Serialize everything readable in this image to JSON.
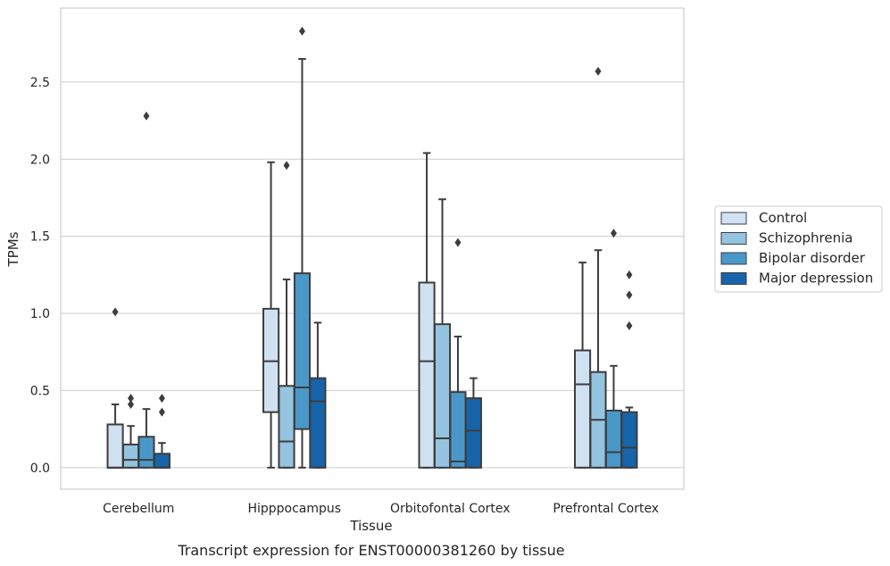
{
  "caption": "Transcript expression for ENST00000381260 by tissue",
  "chart_data": {
    "type": "box",
    "xlabel": "Tissue",
    "ylabel": "TPMs",
    "ylim": [
      -0.14,
      2.98
    ],
    "yticks": [
      0.0,
      0.5,
      1.0,
      1.5,
      2.0,
      2.5
    ],
    "ytick_labels": [
      "0.0",
      "0.5",
      "1.0",
      "1.5",
      "2.0",
      "2.5"
    ],
    "categories": [
      "Cerebellum",
      "Hipppocampus",
      "Orbitofontal Cortex",
      "Prefrontal Cortex"
    ],
    "grid": "horizontal",
    "legend_position": "right",
    "series": [
      {
        "name": "Control",
        "color": "#d0e1f2",
        "boxes": [
          {
            "whislo": 0.0,
            "q1": 0.0,
            "med": 0.0,
            "q3": 0.28,
            "whishi": 0.41,
            "fliers": [
              1.01
            ]
          },
          {
            "whislo": 0.0,
            "q1": 0.36,
            "med": 0.69,
            "q3": 1.03,
            "whishi": 1.98,
            "fliers": []
          },
          {
            "whislo": 0.0,
            "q1": 0.0,
            "med": 0.69,
            "q3": 1.2,
            "whishi": 2.04,
            "fliers": []
          },
          {
            "whislo": 0.0,
            "q1": 0.0,
            "med": 0.54,
            "q3": 0.76,
            "whishi": 1.33,
            "fliers": []
          }
        ]
      },
      {
        "name": "Schizophrenia",
        "color": "#94c4df",
        "boxes": [
          {
            "whislo": 0.0,
            "q1": 0.0,
            "med": 0.05,
            "q3": 0.15,
            "whishi": 0.27,
            "fliers": [
              0.45,
              0.41
            ]
          },
          {
            "whislo": 0.0,
            "q1": 0.0,
            "med": 0.17,
            "q3": 0.53,
            "whishi": 1.22,
            "fliers": [
              1.96
            ]
          },
          {
            "whislo": 0.0,
            "q1": 0.0,
            "med": 0.19,
            "q3": 0.93,
            "whishi": 1.74,
            "fliers": []
          },
          {
            "whislo": 0.0,
            "q1": 0.0,
            "med": 0.31,
            "q3": 0.62,
            "whishi": 1.41,
            "fliers": [
              2.57
            ]
          }
        ]
      },
      {
        "name": "Bipolar disorder",
        "color": "#4a98c9",
        "boxes": [
          {
            "whislo": 0.0,
            "q1": 0.0,
            "med": 0.05,
            "q3": 0.2,
            "whishi": 0.38,
            "fliers": [
              2.28
            ]
          },
          {
            "whislo": 0.0,
            "q1": 0.25,
            "med": 0.52,
            "q3": 1.26,
            "whishi": 2.65,
            "fliers": [
              2.83
            ]
          },
          {
            "whislo": 0.0,
            "q1": 0.0,
            "med": 0.04,
            "q3": 0.49,
            "whishi": 0.85,
            "fliers": [
              1.46
            ]
          },
          {
            "whislo": 0.0,
            "q1": 0.0,
            "med": 0.1,
            "q3": 0.37,
            "whishi": 0.66,
            "fliers": [
              1.52
            ]
          }
        ]
      },
      {
        "name": "Major depression",
        "color": "#1764ab",
        "boxes": [
          {
            "whislo": 0.0,
            "q1": 0.0,
            "med": 0.0,
            "q3": 0.09,
            "whishi": 0.16,
            "fliers": [
              0.45,
              0.36
            ]
          },
          {
            "whislo": 0.0,
            "q1": 0.0,
            "med": 0.43,
            "q3": 0.58,
            "whishi": 0.94,
            "fliers": []
          },
          {
            "whislo": 0.0,
            "q1": 0.0,
            "med": 0.24,
            "q3": 0.45,
            "whishi": 0.58,
            "fliers": []
          },
          {
            "whislo": 0.0,
            "q1": 0.0,
            "med": 0.13,
            "q3": 0.36,
            "whishi": 0.39,
            "fliers": [
              1.25,
              1.12,
              0.92
            ]
          }
        ]
      }
    ]
  },
  "colors": {
    "edge": "#3d3d3d",
    "grid": "#cccccc",
    "frame": "#cccccc"
  }
}
